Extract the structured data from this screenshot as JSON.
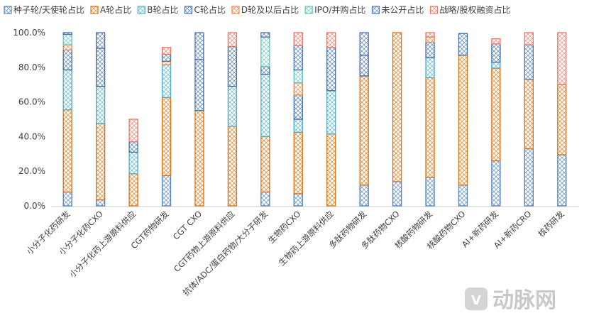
{
  "colors": {
    "种子轮/天使轮占比": "#4f81bd",
    "A轮占比": "#e46c0a",
    "B轮占比": "#4bacc6",
    "C轮占比": "#3f6ea6",
    "D轮及以后占比": "#f0824a",
    "IPO/并购占比": "#5cc4b6",
    "未公开占比": "#4a72b0",
    "战略/股权融资占比": "#ee7564"
  },
  "watermark": "动脉网",
  "chart_data": {
    "type": "bar",
    "stacked": true,
    "orientation": "vertical",
    "ylim": [
      0,
      100
    ],
    "y_ticks": [
      "0.0%",
      "20.0%",
      "40.0%",
      "60.0%",
      "80.0%",
      "100.0%"
    ],
    "grid": false,
    "legend_position": "top",
    "categories": [
      "小分子化药研发",
      "小分子化药CXO",
      "小分子化药上游原料供应",
      "CGT药物研发",
      "CGT CXO",
      "CGT药物上游原料供应",
      "抗体/ADC/蛋白药物/大分子研发",
      "生物药CXO",
      "生物药上游原料供应",
      "多肽药物研发",
      "多肽药物CXO",
      "核酸药物研发",
      "核酸药物CXO",
      "AI+新药研发",
      "AI+新药CRO",
      "核药研发"
    ],
    "series": [
      {
        "name": "种子轮/天使轮占比",
        "values": [
          8,
          3.5,
          0,
          17.5,
          0,
          0,
          8,
          7,
          0,
          12,
          14,
          16.5,
          12,
          26,
          33,
          29.5
        ]
      },
      {
        "name": "A轮占比",
        "values": [
          47.5,
          44,
          18.5,
          45,
          55,
          46,
          32,
          35.5,
          41.5,
          63,
          86,
          57.5,
          75,
          53.5,
          40,
          40.5
        ]
      },
      {
        "name": "B轮占比",
        "values": [
          23,
          21.5,
          12.5,
          19,
          0,
          23,
          36,
          7.5,
          25,
          0,
          0,
          11.5,
          0,
          3.5,
          0,
          0
        ]
      },
      {
        "name": "C轮占比",
        "values": [
          11.5,
          22,
          6,
          0,
          29.5,
          23,
          4.5,
          14,
          25,
          12,
          0,
          9,
          12.5,
          10.5,
          0,
          0
        ]
      },
      {
        "name": "D轮及以后占比",
        "values": [
          3,
          0,
          0,
          2,
          0,
          0,
          0,
          7,
          0,
          0,
          0,
          3,
          0,
          0,
          0,
          0
        ]
      },
      {
        "name": "IPO/并购占比",
        "values": [
          6,
          0,
          0,
          0,
          0,
          0,
          17,
          7.5,
          0,
          0,
          0,
          0,
          0,
          0,
          0,
          0
        ]
      },
      {
        "name": "未公开占比",
        "values": [
          1,
          9,
          0,
          4,
          15.5,
          0,
          2.5,
          14,
          0,
          13,
          0,
          0,
          0,
          0,
          20,
          0
        ]
      },
      {
        "name": "战略/股权融资占比",
        "values": [
          0,
          0,
          13,
          4,
          0,
          8,
          0,
          7.5,
          8.5,
          0,
          0,
          2.5,
          0,
          3,
          7,
          30
        ]
      }
    ]
  }
}
